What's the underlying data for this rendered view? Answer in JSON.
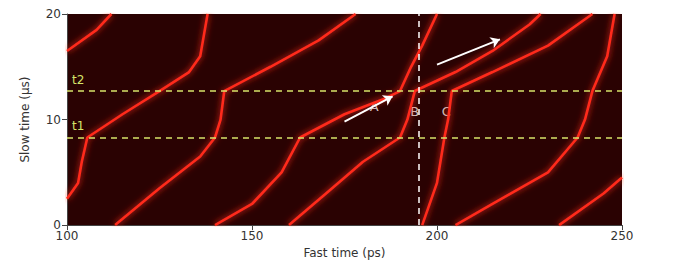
{
  "chart_data": {
    "type": "line",
    "xlabel": "Fast time (ps)",
    "ylabel": "Slow time (μs)",
    "xlim": [
      100,
      250
    ],
    "xticks": [
      100,
      150,
      200,
      250
    ],
    "ylim": [
      0,
      20
    ],
    "yticks": [
      0,
      10,
      20
    ],
    "grid": false,
    "color": "#ff2a1a",
    "series": [
      {
        "x": [
          100,
          108,
          112
        ],
        "values": [
          16.5,
          18.5,
          20
        ]
      },
      {
        "x": [
          100,
          103,
          104,
          105.5,
          115,
          125,
          133,
          136,
          137,
          138
        ],
        "values": [
          2.5,
          4,
          6,
          8.3,
          10.5,
          12.7,
          14.5,
          16,
          18,
          20
        ]
      },
      {
        "x": [
          113,
          125,
          136,
          140,
          141.5,
          142.5,
          155,
          168,
          178
        ],
        "values": [
          0,
          3.5,
          6.5,
          8.3,
          10,
          12.7,
          15,
          17.5,
          20
        ]
      },
      {
        "x": [
          140,
          150,
          158,
          163,
          175,
          186,
          190,
          193,
          196,
          200
        ],
        "values": [
          0,
          2,
          5,
          8.3,
          10.5,
          12,
          12.7,
          15,
          17,
          20
        ]
      },
      {
        "x": [
          160,
          170,
          180,
          190,
          192,
          194,
          205,
          215,
          225,
          228
        ],
        "values": [
          0,
          3,
          6,
          8.3,
          10,
          12.7,
          14.5,
          16.5,
          19,
          20
        ]
      },
      {
        "x": [
          196,
          200,
          202,
          203,
          204,
          215,
          230,
          240,
          242
        ],
        "values": [
          0,
          4,
          8.3,
          10,
          12.7,
          14.5,
          17,
          19.5,
          20
        ]
      },
      {
        "x": [
          205,
          215,
          230,
          238,
          240,
          242,
          246,
          248
        ],
        "values": [
          0,
          2,
          5,
          8.3,
          10,
          12.7,
          16,
          20
        ]
      },
      {
        "x": [
          233,
          245,
          250
        ],
        "values": [
          0,
          3,
          4.5
        ]
      }
    ],
    "hlines": [
      {
        "label": "t1",
        "value": 8.3,
        "color": "#d6e46a"
      },
      {
        "label": "t2",
        "value": 12.7,
        "color": "#d6e46a"
      }
    ],
    "vlines": [
      {
        "value": 195,
        "color": "#ffffff"
      }
    ],
    "annotations": [
      {
        "text": "A",
        "x": 183,
        "y": 11.2
      },
      {
        "text": "B",
        "x": 194,
        "y": 10.8
      },
      {
        "text": "C",
        "x": 202.5,
        "y": 10.8
      }
    ],
    "arrows": [
      {
        "from": [
          175,
          9.8
        ],
        "to": [
          188,
          12.2
        ]
      },
      {
        "from": [
          200,
          15.2
        ],
        "to": [
          217,
          17.6
        ]
      }
    ]
  }
}
